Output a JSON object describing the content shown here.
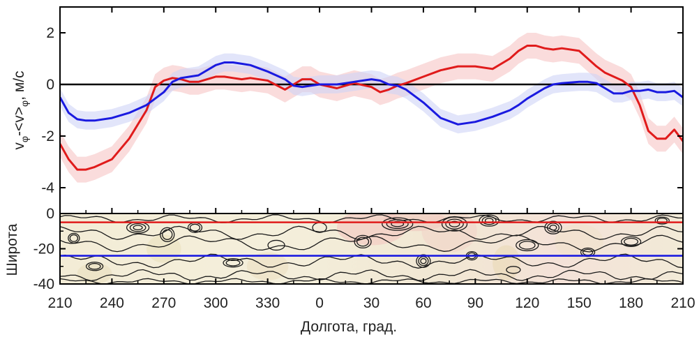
{
  "chart_data": [
    {
      "type": "line",
      "ylabel": "vφ-<v>φ, м/с",
      "ylabel_parts": {
        "v": "v",
        "sub1": "φ",
        "mid": "-<v>",
        "sub2": "φ",
        "units": ", м/с"
      },
      "ylim": [
        -5,
        3
      ],
      "yticks": [
        2,
        0,
        -2,
        -4
      ],
      "reference_line": 0,
      "x": [
        210,
        215,
        220,
        225,
        230,
        240,
        250,
        260,
        265,
        270,
        275,
        280,
        285,
        290,
        300,
        305,
        310,
        315,
        320,
        330,
        340,
        345,
        350,
        355,
        0,
        10,
        15,
        20,
        30,
        35,
        40,
        45,
        50,
        60,
        70,
        80,
        90,
        100,
        110,
        115,
        120,
        125,
        130,
        135,
        140,
        150,
        155,
        160,
        165,
        170,
        175,
        180,
        185,
        190,
        195,
        200,
        205,
        210
      ],
      "series": [
        {
          "color": "#e01b1b",
          "band_color": "#f7c4c4",
          "values": [
            -2.3,
            -2.9,
            -3.3,
            -3.3,
            -3.2,
            -2.9,
            -2.1,
            -1.0,
            -0.1,
            0.15,
            0.25,
            0.2,
            0.1,
            0.1,
            0.3,
            0.3,
            0.25,
            0.2,
            0.25,
            0.15,
            -0.2,
            0.0,
            0.2,
            0.2,
            0.0,
            -0.15,
            -0.05,
            0.05,
            -0.1,
            -0.3,
            -0.2,
            -0.05,
            0.05,
            0.3,
            0.55,
            0.7,
            0.7,
            0.6,
            1.0,
            1.3,
            1.5,
            1.5,
            1.4,
            1.35,
            1.4,
            1.3,
            1.0,
            0.7,
            0.45,
            0.3,
            0.15,
            -0.1,
            -0.8,
            -1.8,
            -2.1,
            -2.1,
            -1.75,
            -2.2
          ],
          "band": 0.5
        },
        {
          "color": "#1a1ae0",
          "band_color": "#cfd3f7",
          "values": [
            -0.5,
            -1.1,
            -1.35,
            -1.4,
            -1.4,
            -1.3,
            -1.1,
            -0.8,
            -0.55,
            -0.3,
            0.1,
            0.25,
            0.3,
            0.35,
            0.75,
            0.85,
            0.85,
            0.8,
            0.75,
            0.5,
            0.2,
            -0.05,
            -0.1,
            -0.05,
            0.0,
            0.0,
            0.05,
            0.1,
            0.2,
            0.15,
            0.0,
            -0.05,
            -0.2,
            -0.7,
            -1.3,
            -1.55,
            -1.45,
            -1.25,
            -1.0,
            -0.8,
            -0.55,
            -0.35,
            -0.15,
            0.0,
            0.05,
            0.1,
            0.1,
            0.05,
            -0.15,
            -0.35,
            -0.35,
            -0.25,
            -0.25,
            -0.2,
            -0.3,
            -0.3,
            -0.25,
            -0.5
          ],
          "band": 0.35
        }
      ]
    },
    {
      "type": "heatmap",
      "ylabel": "Широта",
      "xlabel": "Долгота, град.",
      "ylim": [
        -40,
        0
      ],
      "yticks": [
        0,
        -20,
        -40
      ],
      "xticks": [
        "210",
        "240",
        "270",
        "300",
        "330",
        "0",
        "30",
        "60",
        "90",
        "120",
        "150",
        "180",
        "210"
      ],
      "markers": [
        {
          "latitude": -5,
          "color": "#e01b1b"
        },
        {
          "latitude": -24,
          "color": "#1a1ae0"
        }
      ]
    }
  ]
}
